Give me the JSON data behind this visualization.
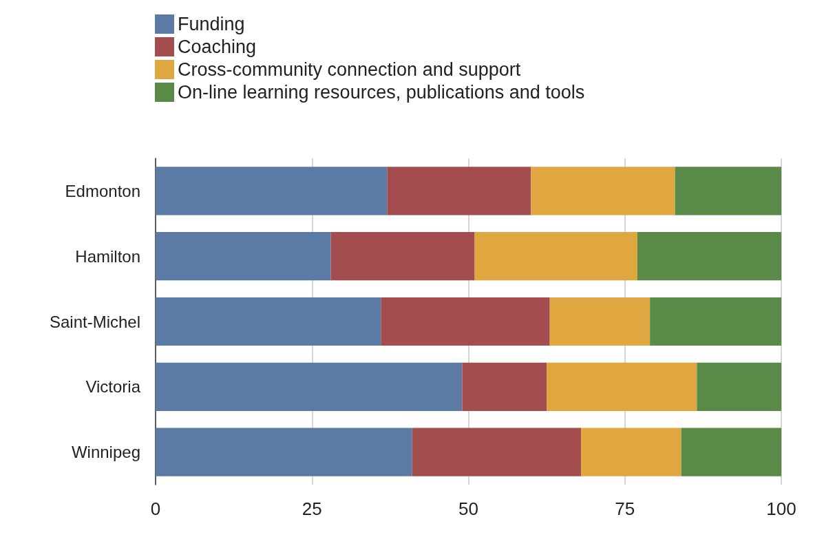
{
  "chart_data": {
    "type": "bar",
    "orientation": "horizontal",
    "stacked": true,
    "categories": [
      "Edmonton",
      "Hamilton",
      "Saint-Michel",
      "Victoria",
      "Winnipeg"
    ],
    "series": [
      {
        "name": "Funding",
        "color": "#5b7aa5",
        "values": [
          37,
          28,
          36,
          49,
          41
        ]
      },
      {
        "name": "Coaching",
        "color": "#a44d4f",
        "values": [
          23,
          23,
          27,
          13.5,
          27
        ]
      },
      {
        "name": "Cross-community connection and support",
        "color": "#e0a640",
        "values": [
          23,
          26,
          16,
          24,
          16
        ]
      },
      {
        "name": "On-line learning resources, publications and tools",
        "color": "#5a8a48",
        "values": [
          17,
          23,
          21,
          13.5,
          16
        ]
      }
    ],
    "xlim": [
      0,
      100
    ],
    "xticks": [
      0,
      25,
      50,
      75,
      100
    ],
    "grid": "x",
    "legend": "top left"
  }
}
